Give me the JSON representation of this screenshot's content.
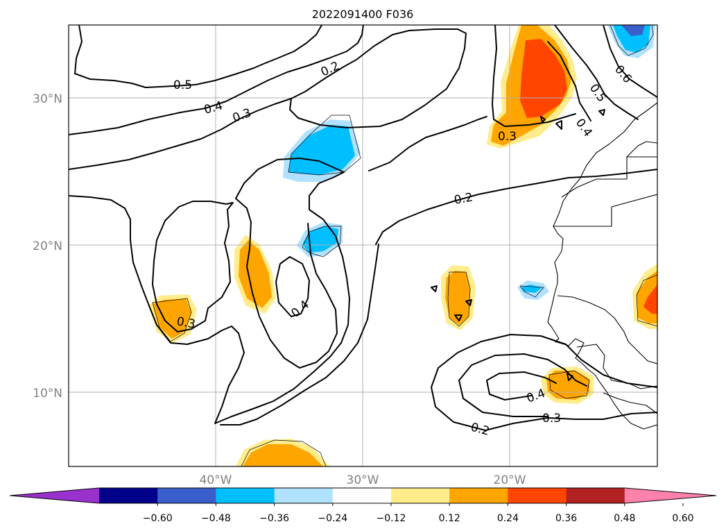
{
  "title": "2022091400 F036",
  "map": {
    "lat_ticks": [
      "30°N",
      "20°N",
      "10°N"
    ],
    "lon_ticks": [
      "40°W",
      "30°W",
      "20°W"
    ],
    "grid": true,
    "contour_labels": [
      "0.5",
      "0.4",
      "0.3",
      "0.2",
      "0.2",
      "0.3",
      "0.4",
      "0.3",
      "0.4",
      "0.2",
      "0.4",
      "0.3",
      "0.5",
      "0.6"
    ]
  },
  "colorbar": {
    "tick_labels": [
      "−0.60",
      "−0.48",
      "−0.36",
      "−0.24",
      "−0.12",
      "0.12",
      "0.24",
      "0.36",
      "0.48",
      "0.60"
    ],
    "colors": [
      "#9932cc",
      "#00008b",
      "#3a5fcd",
      "#00bfff",
      "#b0e2ff",
      "#ffffff",
      "#ffec8b",
      "#ffa500",
      "#ff4500",
      "#b22222",
      "#ff82ab"
    ],
    "extend": "both"
  },
  "colors": {
    "light_yellow": "#ffec8b",
    "orange": "#ffa500",
    "orange_red": "#ff4500",
    "sky_blue": "#00bfff",
    "light_blue": "#b0e2ff",
    "royal_blue": "#3a5fcd"
  }
}
